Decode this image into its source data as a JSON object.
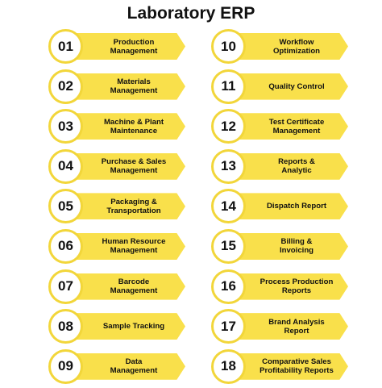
{
  "title": "Laboratory ERP",
  "colors": {
    "accent": "#f9e04b",
    "ring": "#f2d63a",
    "text": "#111111"
  },
  "left_items": [
    {
      "number": "01",
      "label": "Production\nManagement"
    },
    {
      "number": "02",
      "label": "Materials\nManagement"
    },
    {
      "number": "03",
      "label": "Machine & Plant\nMaintenance"
    },
    {
      "number": "04",
      "label": "Purchase & Sales\nManagement"
    },
    {
      "number": "05",
      "label": "Packaging &\nTransportation"
    },
    {
      "number": "06",
      "label": "Human Resource\nManagement"
    },
    {
      "number": "07",
      "label": "Barcode\nManagement"
    },
    {
      "number": "08",
      "label": "Sample Tracking"
    },
    {
      "number": "09",
      "label": "Data\nManagement"
    }
  ],
  "right_items": [
    {
      "number": "10",
      "label": "Workflow\nOptimization"
    },
    {
      "number": "11",
      "label": "Quality Control"
    },
    {
      "number": "12",
      "label": "Test Certificate\nManagement"
    },
    {
      "number": "13",
      "label": "Reports &\nAnalytic"
    },
    {
      "number": "14",
      "label": "Dispatch Report"
    },
    {
      "number": "15",
      "label": "Billing &\nInvoicing"
    },
    {
      "number": "16",
      "label": "Process Production\nReports"
    },
    {
      "number": "17",
      "label": "Brand Analysis\nReport"
    },
    {
      "number": "18",
      "label": "Comparative Sales\nProfitability Reports"
    }
  ]
}
